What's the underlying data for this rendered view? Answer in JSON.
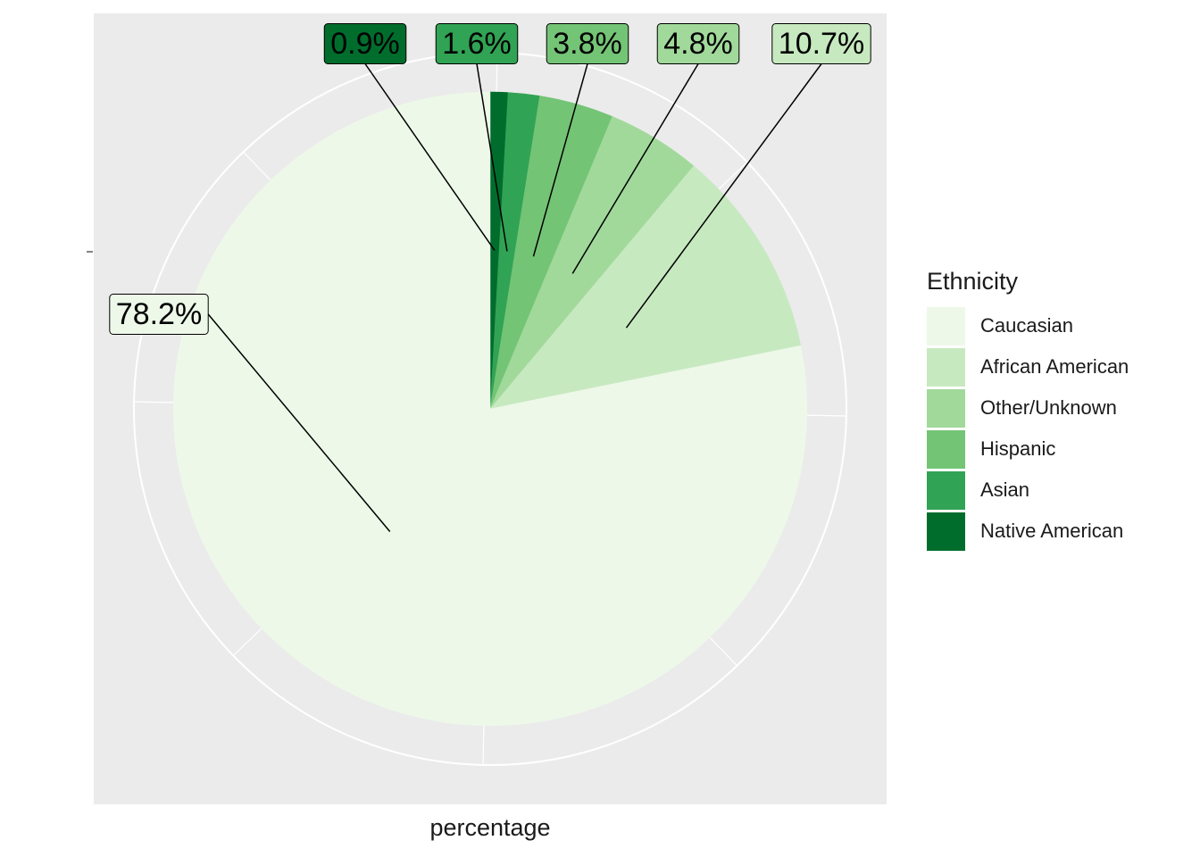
{
  "chart_data": {
    "type": "pie",
    "legend_title": "Ethnicity",
    "legend_position": "right",
    "xlabel": "percentage",
    "slices": [
      {
        "category": "Caucasian",
        "value": 78.2,
        "label": "78.2%",
        "color": "#edf8e9"
      },
      {
        "category": "African American",
        "value": 10.7,
        "label": "10.7%",
        "color": "#c7e9c0"
      },
      {
        "category": "Other/Unknown",
        "value": 4.8,
        "label": "4.8%",
        "color": "#a1d99b"
      },
      {
        "category": "Hispanic",
        "value": 3.8,
        "label": "3.8%",
        "color": "#74c476"
      },
      {
        "category": "Asian",
        "value": 1.6,
        "label": "1.6%",
        "color": "#31a354"
      },
      {
        "category": "Native American",
        "value": 0.9,
        "label": "0.9%",
        "color": "#006d2c"
      }
    ],
    "panel_background": "#ebebeb",
    "grid_color": "#ffffff"
  }
}
